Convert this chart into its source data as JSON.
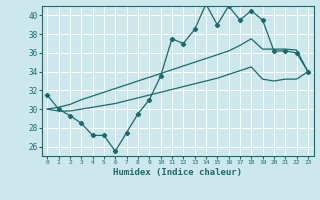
{
  "title": "",
  "xlabel": "Humidex (Indice chaleur)",
  "ylabel": "",
  "bg_color": "#cce8ec",
  "grid_color": "#ffffff",
  "line_color": "#1a6b6b",
  "xlim": [
    -0.5,
    23.5
  ],
  "ylim": [
    25.0,
    41.0
  ],
  "yticks": [
    26,
    28,
    30,
    32,
    34,
    36,
    38,
    40
  ],
  "xticks": [
    0,
    1,
    2,
    3,
    4,
    5,
    6,
    7,
    8,
    9,
    10,
    11,
    12,
    13,
    14,
    15,
    16,
    17,
    18,
    19,
    20,
    21,
    22,
    23
  ],
  "line1_x": [
    0,
    1,
    2,
    3,
    4,
    5,
    6,
    7,
    8,
    9,
    10,
    11,
    12,
    13,
    14,
    15,
    16,
    17,
    18,
    19,
    20,
    21,
    22,
    23
  ],
  "line1_y": [
    31.5,
    30.0,
    29.3,
    28.5,
    27.2,
    27.2,
    25.5,
    27.5,
    29.5,
    31.0,
    33.5,
    37.5,
    37.0,
    38.5,
    41.2,
    39.0,
    41.0,
    39.5,
    40.5,
    39.5,
    36.2,
    36.2,
    36.0,
    34.0
  ],
  "line2_x": [
    0,
    1,
    2,
    3,
    4,
    5,
    6,
    7,
    8,
    9,
    10,
    11,
    12,
    13,
    14,
    15,
    16,
    17,
    18,
    19,
    20,
    21,
    22,
    23
  ],
  "line2_y": [
    30.0,
    30.2,
    30.5,
    31.0,
    31.4,
    31.8,
    32.2,
    32.6,
    33.0,
    33.4,
    33.8,
    34.2,
    34.6,
    35.0,
    35.4,
    35.8,
    36.2,
    36.8,
    37.5,
    36.4,
    36.4,
    36.4,
    36.3,
    34.0
  ],
  "line3_x": [
    0,
    1,
    2,
    3,
    4,
    5,
    6,
    7,
    8,
    9,
    10,
    11,
    12,
    13,
    14,
    15,
    16,
    17,
    18,
    19,
    20,
    21,
    22,
    23
  ],
  "line3_y": [
    30.0,
    29.8,
    29.8,
    30.0,
    30.2,
    30.4,
    30.6,
    30.9,
    31.2,
    31.5,
    31.8,
    32.1,
    32.4,
    32.7,
    33.0,
    33.3,
    33.7,
    34.1,
    34.5,
    33.2,
    33.0,
    33.2,
    33.2,
    34.0
  ]
}
